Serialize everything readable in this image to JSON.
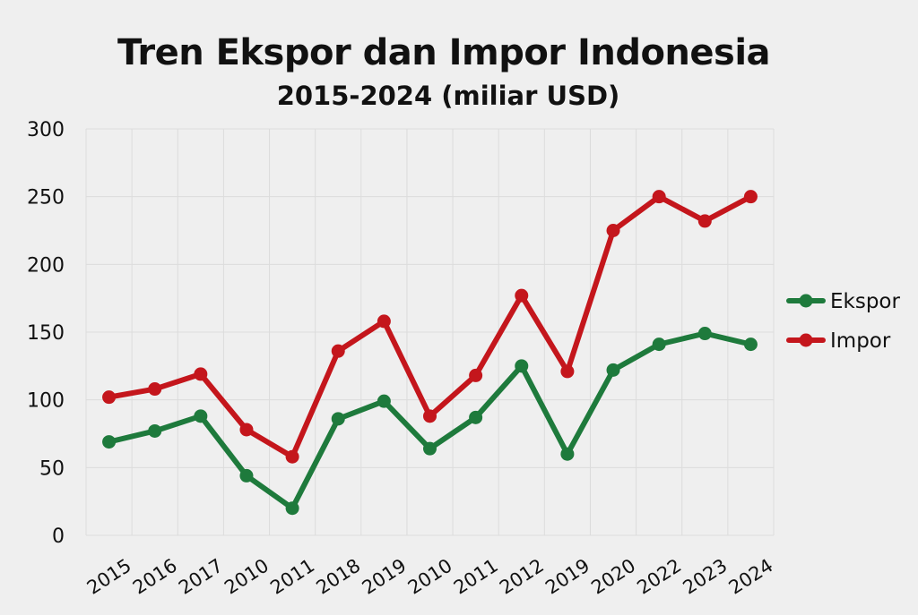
{
  "chart_data": {
    "type": "line",
    "title": "Tren Ekspor dan Impor Indonesia",
    "subtitle": "2015-2024 (miliar USD)",
    "xlabel": "",
    "ylabel": "",
    "categories": [
      "2015",
      "2016",
      "2017",
      "2010",
      "2011",
      "2018",
      "2019",
      "2010",
      "2011",
      "2012",
      "2019",
      "2020",
      "2022",
      "2023",
      "2024"
    ],
    "yticks": [
      "0",
      "50",
      "100",
      "150",
      "200",
      "250",
      "300"
    ],
    "ylim": [
      0,
      300
    ],
    "grid": true,
    "legend_position": "right",
    "series": [
      {
        "name": "Ekspor",
        "color": "#1e7a3c",
        "values": [
          69,
          77,
          88,
          44,
          20,
          86,
          99,
          64,
          87,
          125,
          60,
          122,
          141,
          149,
          141
        ]
      },
      {
        "name": "Impor",
        "color": "#c4161c",
        "values": [
          102,
          108,
          119,
          78,
          58,
          136,
          158,
          88,
          118,
          177,
          121,
          225,
          250,
          232,
          250
        ]
      }
    ]
  }
}
